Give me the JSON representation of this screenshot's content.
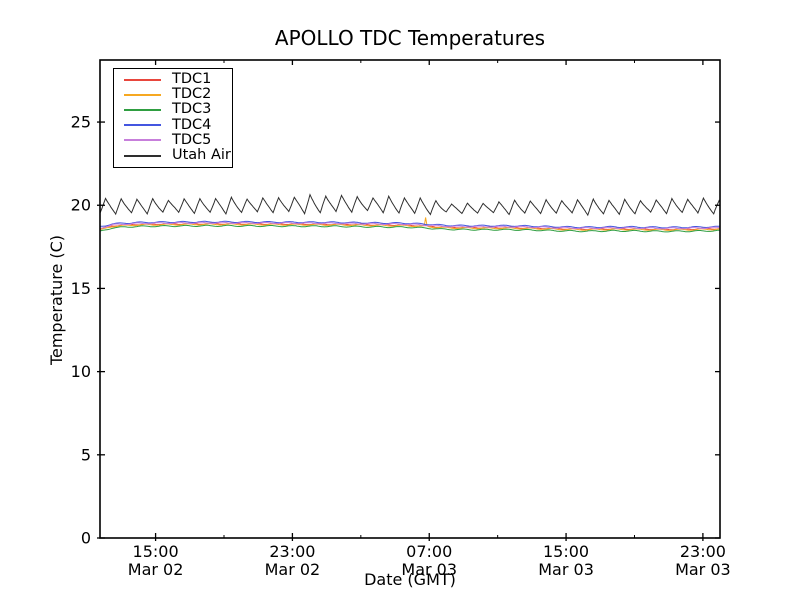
{
  "chart_data": {
    "type": "line",
    "title": "APOLLO TDC Temperatures",
    "xlabel": "Date (GMT)",
    "ylabel": "Temperature (C)",
    "ylim": [
      0,
      28.73
    ],
    "y_major_ticks": [
      0,
      5,
      10,
      15,
      20,
      25
    ],
    "t_range_hours": [
      0,
      36.25
    ],
    "x_major_ticks": [
      {
        "t": 3.25,
        "time": "15:00",
        "date": "Mar 02"
      },
      {
        "t": 11.25,
        "time": "23:00",
        "date": "Mar 02"
      },
      {
        "t": 19.25,
        "time": "07:00",
        "date": "Mar 03"
      },
      {
        "t": 27.25,
        "time": "15:00",
        "date": "Mar 03"
      },
      {
        "t": 35.25,
        "time": "23:00",
        "date": "Mar 03"
      }
    ],
    "x_minor_ticks": [
      7.25,
      15.25,
      23.25,
      31.25
    ],
    "axis_color": "#000000",
    "legend_position": "upper left",
    "grid": false,
    "series": [
      {
        "name": "TDC1",
        "color": "#e8463d",
        "control_points": [
          [
            0,
            18.56
          ],
          [
            0.7,
            18.77
          ],
          [
            2,
            18.85
          ],
          [
            4,
            18.88
          ],
          [
            6,
            18.89
          ],
          [
            8,
            18.89
          ],
          [
            10,
            18.88
          ],
          [
            12,
            18.87
          ],
          [
            14,
            18.86
          ],
          [
            16,
            18.83
          ],
          [
            18,
            18.81
          ],
          [
            19.2,
            18.75
          ],
          [
            20,
            18.69
          ],
          [
            21,
            18.67
          ],
          [
            22.5,
            18.66
          ],
          [
            24,
            18.66
          ],
          [
            25.5,
            18.63
          ],
          [
            27,
            18.59
          ],
          [
            28.5,
            18.57
          ],
          [
            30,
            18.59
          ],
          [
            31.5,
            18.58
          ],
          [
            33,
            18.56
          ],
          [
            34.5,
            18.57
          ],
          [
            35.5,
            18.59
          ],
          [
            36.25,
            18.6
          ]
        ],
        "wiggle": {
          "amp": 0.035,
          "period": 1.25,
          "phase": 0
        }
      },
      {
        "name": "TDC2",
        "color": "#f6a821",
        "control_points": [
          [
            0,
            18.5
          ],
          [
            0.7,
            18.73
          ],
          [
            2,
            18.81
          ],
          [
            4,
            18.84
          ],
          [
            6,
            18.85
          ],
          [
            8,
            18.85
          ],
          [
            10,
            18.84
          ],
          [
            12,
            18.83
          ],
          [
            14,
            18.82
          ],
          [
            16,
            18.79
          ],
          [
            18,
            18.77
          ],
          [
            19.2,
            18.71
          ],
          [
            20,
            18.65
          ],
          [
            21,
            18.63
          ],
          [
            22.5,
            18.62
          ],
          [
            24,
            18.62
          ],
          [
            25.5,
            18.59
          ],
          [
            27,
            18.55
          ],
          [
            28.5,
            18.53
          ],
          [
            30,
            18.55
          ],
          [
            31.5,
            18.54
          ],
          [
            33,
            18.52
          ],
          [
            34.5,
            18.53
          ],
          [
            35.5,
            18.55
          ],
          [
            36.25,
            18.56
          ]
        ],
        "wiggle": {
          "amp": 0.035,
          "period": 1.25,
          "phase": 0.8
        },
        "spike": {
          "t": 19.05,
          "height": 0.55,
          "width": 0.045
        }
      },
      {
        "name": "TDC3",
        "color": "#2f9e41",
        "control_points": [
          [
            0,
            18.42
          ],
          [
            0.7,
            18.64
          ],
          [
            2,
            18.72
          ],
          [
            4,
            18.75
          ],
          [
            6,
            18.76
          ],
          [
            8,
            18.76
          ],
          [
            10,
            18.75
          ],
          [
            12,
            18.74
          ],
          [
            14,
            18.73
          ],
          [
            16,
            18.7
          ],
          [
            18,
            18.68
          ],
          [
            19.2,
            18.62
          ],
          [
            20,
            18.56
          ],
          [
            21,
            18.54
          ],
          [
            22.5,
            18.53
          ],
          [
            24,
            18.53
          ],
          [
            25.5,
            18.5
          ],
          [
            27,
            18.46
          ],
          [
            28.5,
            18.44
          ],
          [
            30,
            18.46
          ],
          [
            31.5,
            18.45
          ],
          [
            33,
            18.43
          ],
          [
            34.5,
            18.44
          ],
          [
            35.5,
            18.46
          ],
          [
            36.25,
            18.47
          ]
        ],
        "wiggle": {
          "amp": 0.035,
          "period": 1.25,
          "phase": 1.6
        }
      },
      {
        "name": "TDC4",
        "color": "#4456e0",
        "control_points": [
          [
            0,
            18.7
          ],
          [
            0.7,
            18.88
          ],
          [
            2,
            18.96
          ],
          [
            4,
            18.99
          ],
          [
            6,
            19.0
          ],
          [
            8,
            19.0
          ],
          [
            10,
            18.99
          ],
          [
            12,
            18.98
          ],
          [
            14,
            18.97
          ],
          [
            16,
            18.94
          ],
          [
            18,
            18.92
          ],
          [
            19.2,
            18.86
          ],
          [
            20,
            18.8
          ],
          [
            21,
            18.78
          ],
          [
            22.5,
            18.77
          ],
          [
            24,
            18.77
          ],
          [
            25.5,
            18.74
          ],
          [
            27,
            18.7
          ],
          [
            28.5,
            18.68
          ],
          [
            30,
            18.7
          ],
          [
            31.5,
            18.69
          ],
          [
            33,
            18.67
          ],
          [
            34.5,
            18.68
          ],
          [
            35.5,
            18.7
          ],
          [
            36.25,
            18.71
          ]
        ],
        "wiggle": {
          "amp": 0.035,
          "period": 1.25,
          "phase": 2.4
        }
      },
      {
        "name": "TDC5",
        "color": "#c77fdb",
        "control_points": [
          [
            0,
            18.62
          ],
          [
            0.7,
            18.82
          ],
          [
            2,
            18.9
          ],
          [
            4,
            18.93
          ],
          [
            6,
            18.94
          ],
          [
            8,
            18.94
          ],
          [
            10,
            18.93
          ],
          [
            12,
            18.92
          ],
          [
            14,
            18.91
          ],
          [
            16,
            18.88
          ],
          [
            18,
            18.86
          ],
          [
            19.2,
            18.8
          ],
          [
            20,
            18.74
          ],
          [
            21,
            18.72
          ],
          [
            22.5,
            18.71
          ],
          [
            24,
            18.71
          ],
          [
            25.5,
            18.68
          ],
          [
            27,
            18.64
          ],
          [
            28.5,
            18.62
          ],
          [
            30,
            18.64
          ],
          [
            31.5,
            18.63
          ],
          [
            33,
            18.61
          ],
          [
            34.5,
            18.62
          ],
          [
            35.5,
            18.64
          ],
          [
            36.25,
            18.65
          ]
        ],
        "wiggle": {
          "amp": 0.035,
          "period": 1.25,
          "phase": 3.2
        }
      },
      {
        "name": "Utah Air",
        "color": "#2e2e2e",
        "shape": "sawtooth",
        "baseline": [
          [
            0,
            19.95
          ],
          [
            3,
            19.95
          ],
          [
            6,
            19.97
          ],
          [
            9,
            20.0
          ],
          [
            12,
            20.05
          ],
          [
            14,
            20.1
          ],
          [
            16,
            20.05
          ],
          [
            18,
            20.0
          ],
          [
            19.5,
            19.9
          ],
          [
            21,
            19.8
          ],
          [
            23,
            19.85
          ],
          [
            25,
            19.9
          ],
          [
            27,
            19.92
          ],
          [
            29,
            19.9
          ],
          [
            31,
            19.9
          ],
          [
            33,
            19.95
          ],
          [
            35,
            19.98
          ],
          [
            36.25,
            19.9
          ]
        ],
        "amplitude": [
          [
            0,
            0.42
          ],
          [
            6,
            0.42
          ],
          [
            10,
            0.45
          ],
          [
            13,
            0.5
          ],
          [
            16,
            0.46
          ],
          [
            19,
            0.45
          ],
          [
            20.3,
            0.3
          ],
          [
            23,
            0.3
          ],
          [
            24.5,
            0.4
          ],
          [
            28,
            0.42
          ],
          [
            32,
            0.42
          ],
          [
            36.25,
            0.4
          ]
        ],
        "period_hours": 0.92,
        "rise_fraction": 0.35,
        "amp_jitter": {
          "a1": 0.12,
          "f1": 2.7,
          "a2": 0.08,
          "f2": 1.13
        }
      }
    ]
  }
}
